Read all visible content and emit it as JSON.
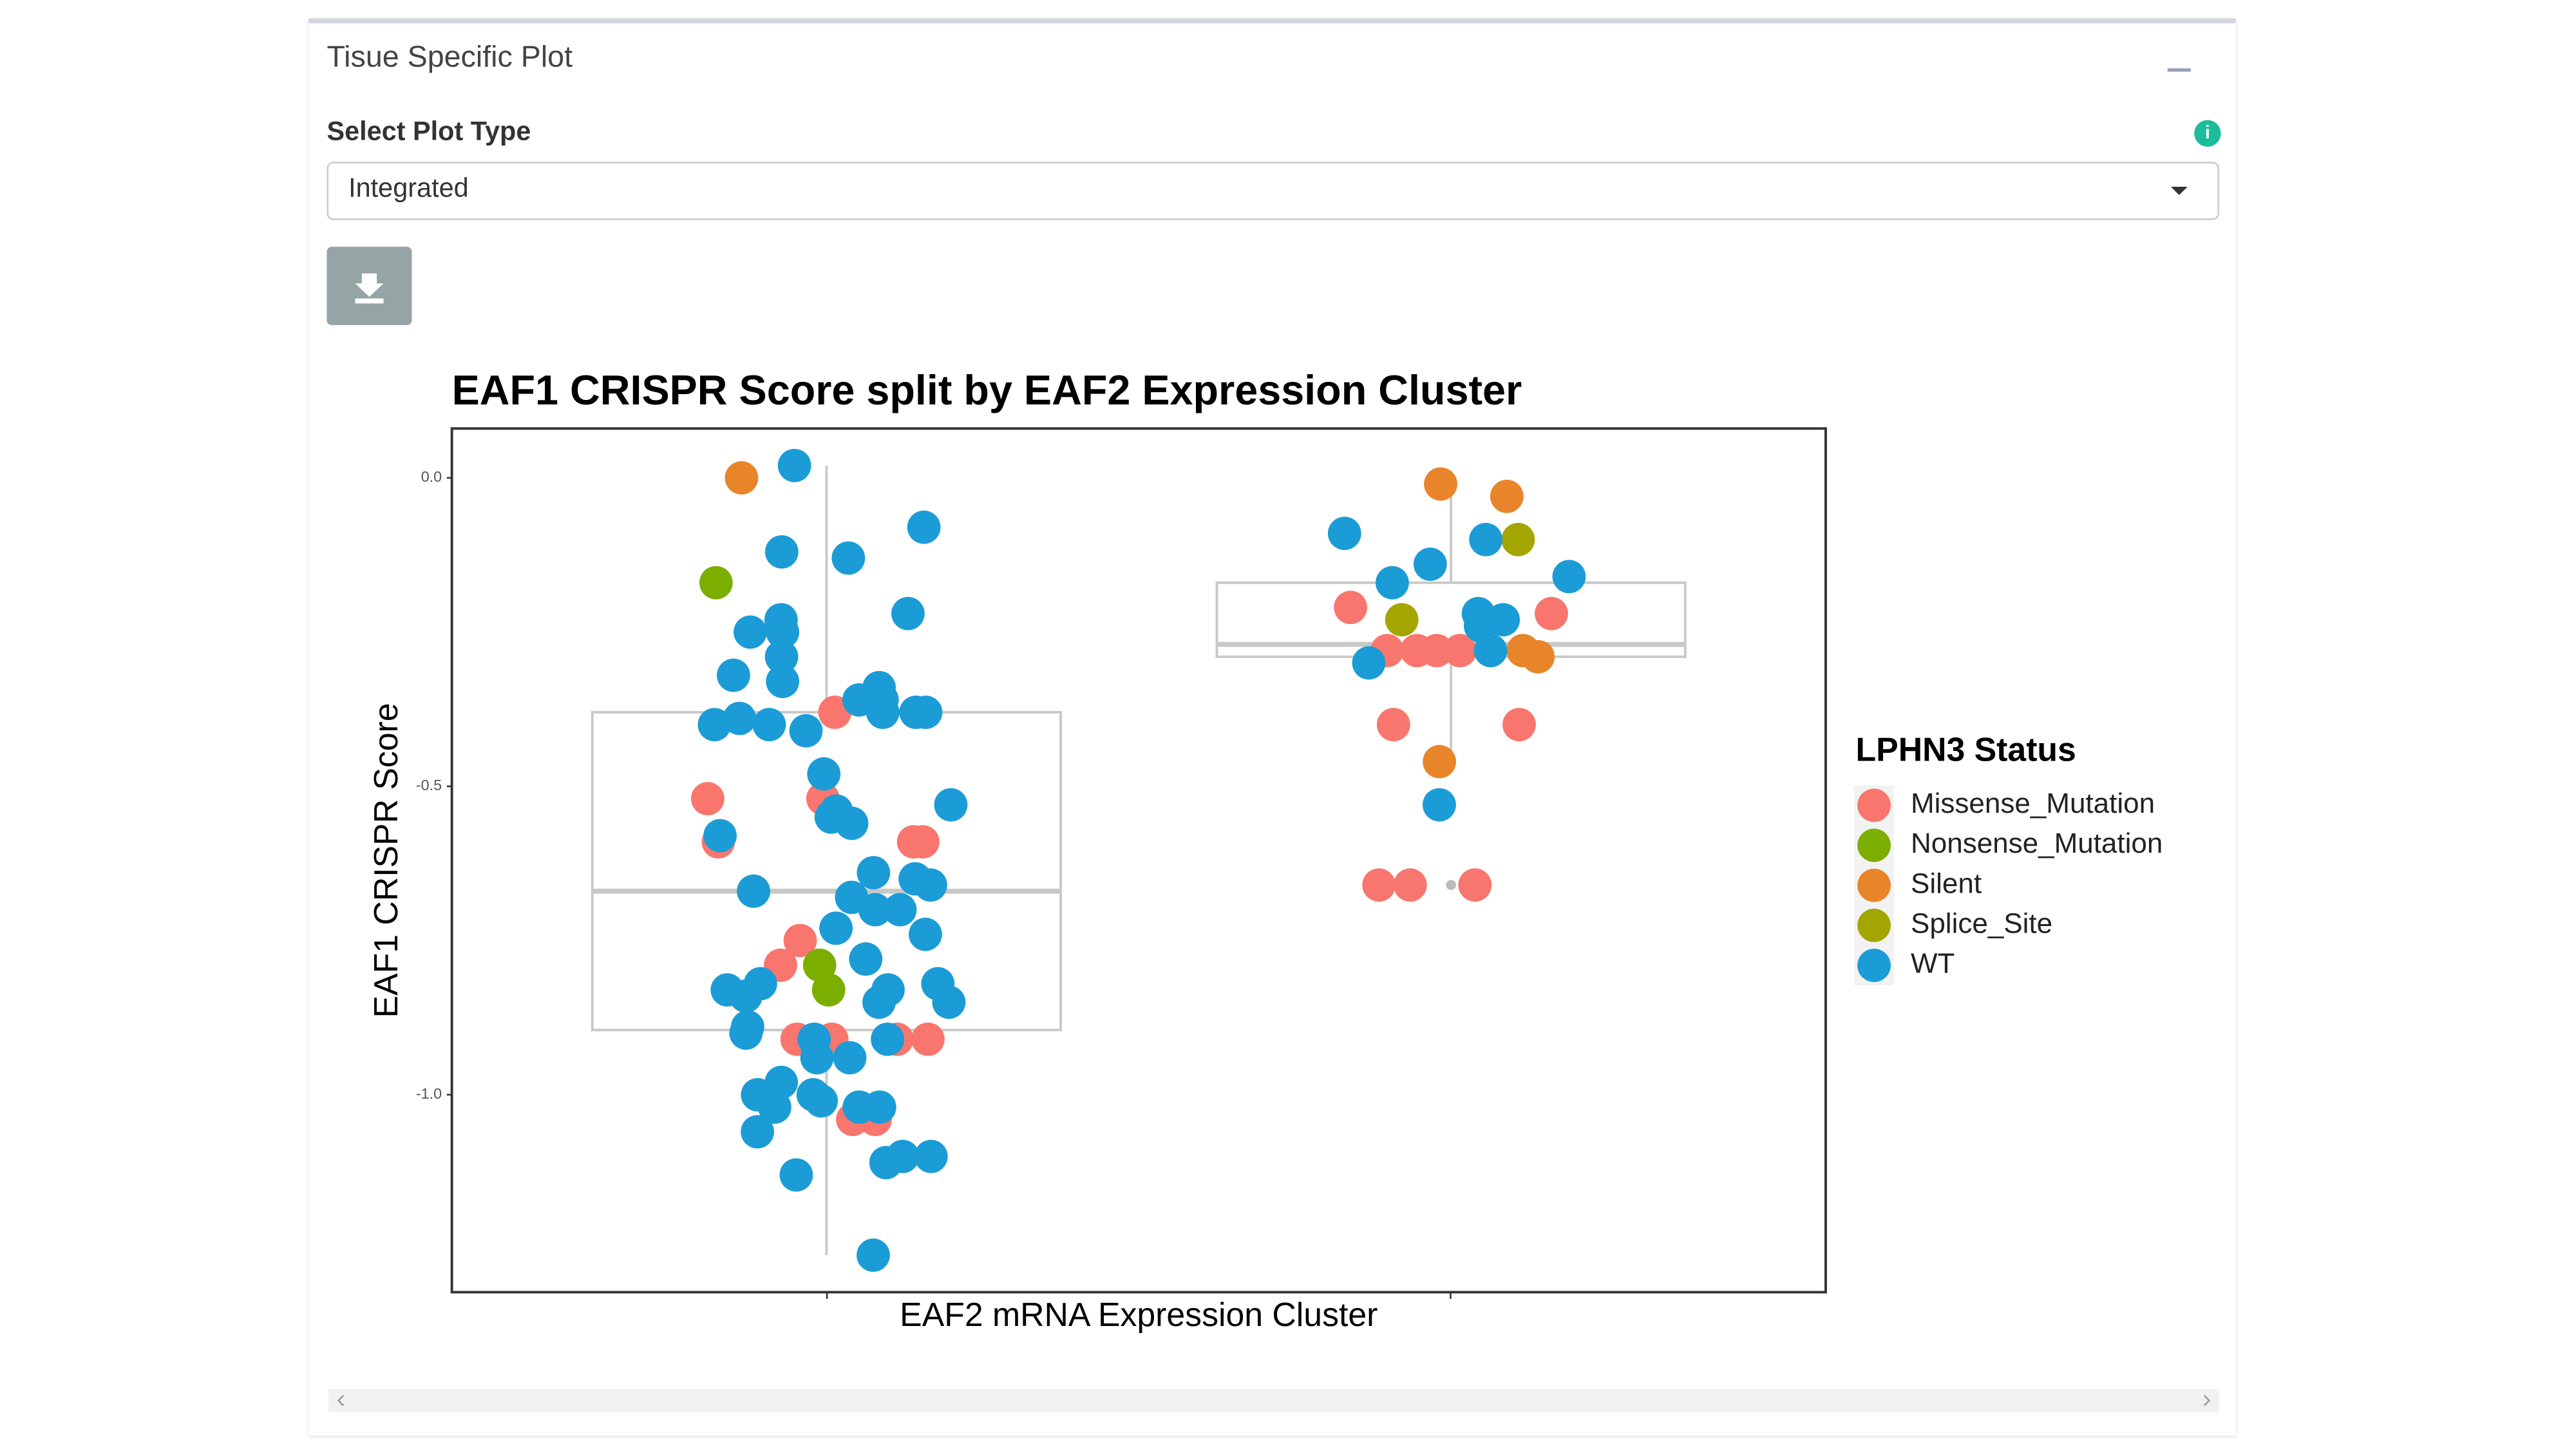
{
  "panel": {
    "title": "Tisue Specific Plot"
  },
  "select": {
    "label": "Select Plot Type",
    "value": "Integrated"
  },
  "chart_data": {
    "type": "box_jitter",
    "title": "EAF1 CRISPR Score split by EAF2 Expression Cluster",
    "x_label": "EAF2 mRNA Expression Cluster",
    "y_label": "EAF1 CRISPR Score",
    "legend_title": "LPHN3 Status",
    "legend": "right",
    "categories": [
      null,
      null
    ],
    "ylim": [
      -1.32,
      0.08
    ],
    "yticks": [
      {
        "value": 0,
        "label": "0.0"
      },
      -0.5,
      {
        "value": -1,
        "label": "-1.0"
      }
    ],
    "boxes": [
      {
        "whisker_low": -1.26,
        "q1": -0.895,
        "median": -0.67,
        "q3": -0.38,
        "whisker_high": 0.02,
        "outliers": []
      },
      {
        "whisker_low": -0.46,
        "q1": -0.29,
        "median": -0.27,
        "q3": -0.17,
        "whisker_high": -0.01,
        "outliers": [
          -0.53,
          -0.66
        ]
      }
    ],
    "series": [
      {
        "name": "Missense_Mutation",
        "color": "#f8766d",
        "values": [
          -0.38,
          -0.52,
          -0.59,
          -0.59,
          -0.52,
          -0.59,
          -0.75,
          -0.79,
          -0.91,
          -0.91,
          -0.91,
          -0.91,
          -1.04,
          -1.04,
          -0.21,
          -0.22,
          -0.28,
          -0.28,
          -0.28,
          -0.28,
          -0.4,
          -0.4,
          -0.66,
          -0.66,
          -0.66
        ],
        "group": [
          0,
          0,
          0,
          0,
          0,
          0,
          0,
          0,
          0,
          0,
          0,
          0,
          0,
          0,
          1,
          1,
          1,
          1,
          1,
          1,
          1,
          1,
          1,
          1,
          1
        ]
      },
      {
        "name": "Nonsense_Mutation",
        "color": "#7cae00",
        "values": [
          -0.17,
          -0.79,
          -0.83
        ],
        "group": [
          0,
          0,
          0
        ]
      },
      {
        "name": "Silent",
        "color": "#e8852a",
        "values": [
          0,
          -0.03,
          -0.01,
          -0.28,
          -0.29,
          -0.46
        ],
        "group": [
          0,
          1,
          1,
          1,
          1,
          1
        ]
      },
      {
        "name": "Splice_Site",
        "color": "#a3a500",
        "values": [
          -0.1,
          -0.23
        ],
        "group": [
          1,
          1
        ]
      },
      {
        "name": "WT",
        "color": "#1b9cd6",
        "values": [
          0.02,
          -0.13,
          -0.08,
          -0.12,
          -0.25,
          -0.22,
          -0.23,
          -0.25,
          -0.29,
          -0.32,
          -0.36,
          -0.34,
          -0.38,
          -0.4,
          -0.38,
          -0.4,
          -0.41,
          -0.39,
          -0.38,
          -0.36,
          -0.33,
          -0.48,
          -0.53,
          -0.56,
          -0.58,
          -0.55,
          -0.54,
          -0.65,
          -0.64,
          -0.68,
          -0.7,
          -0.66,
          -0.67,
          -0.7,
          -0.73,
          -0.74,
          -0.78,
          -0.82,
          -0.82,
          -0.85,
          -0.84,
          -0.83,
          -0.85,
          -0.83,
          -0.9,
          -0.91,
          -0.94,
          -0.94,
          -0.89,
          -0.98,
          -1.0,
          -1.01,
          -1.02,
          -1.02,
          -1.06,
          -1.1,
          -1.1,
          -1.13,
          -1.26,
          -1.11,
          -1.0,
          -0.91,
          -1.02,
          -0.09,
          -0.1,
          -0.14,
          -0.16,
          -0.17,
          -0.22,
          -0.24,
          -0.23,
          -0.28,
          -0.3,
          -0.53
        ],
        "group": [
          0,
          0,
          0,
          0,
          0,
          0,
          0,
          0,
          0,
          0,
          0,
          0,
          0,
          0,
          0,
          0,
          0,
          0,
          0,
          0,
          0,
          0,
          0,
          0,
          0,
          0,
          0,
          0,
          0,
          0,
          0,
          0,
          0,
          0,
          0,
          0,
          0,
          0,
          0,
          0,
          0,
          0,
          0,
          0,
          0,
          0,
          0,
          0,
          0,
          0,
          0,
          0,
          0,
          0,
          0,
          0,
          0,
          0,
          0,
          0,
          0,
          0,
          0,
          1,
          1,
          1,
          1,
          1,
          1,
          1,
          1,
          1,
          1,
          1
        ]
      }
    ]
  }
}
